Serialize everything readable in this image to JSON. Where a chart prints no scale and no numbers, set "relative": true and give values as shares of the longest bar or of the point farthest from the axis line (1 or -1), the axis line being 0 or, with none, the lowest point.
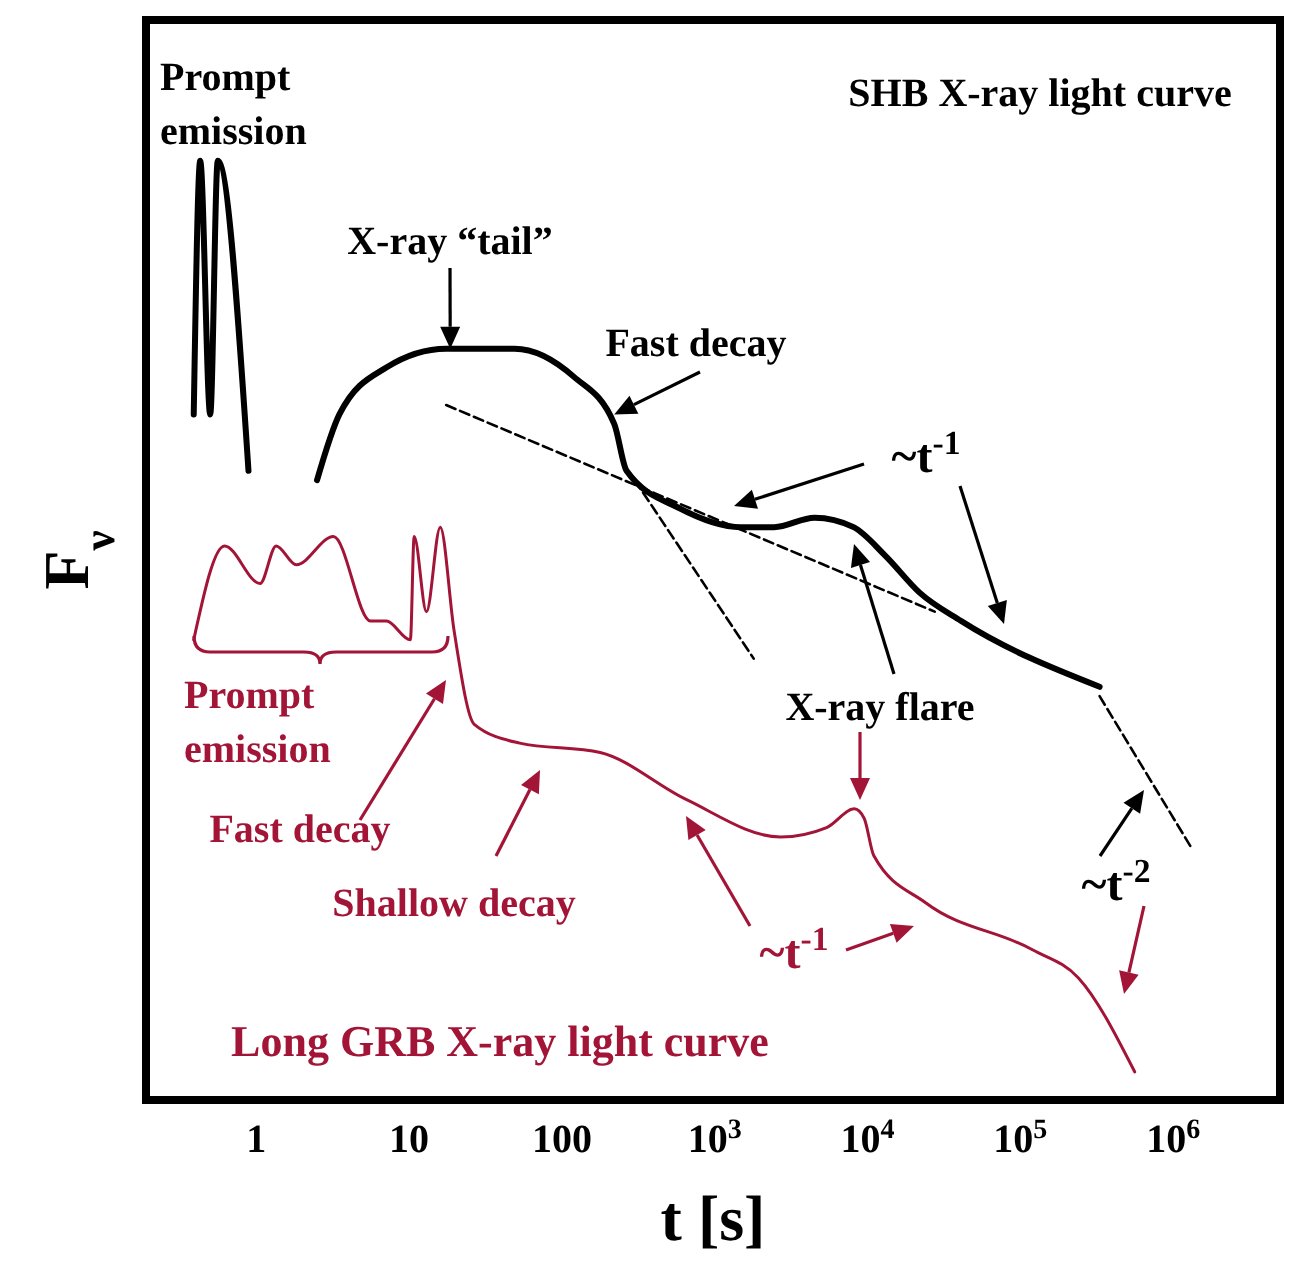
{
  "chart_data": {
    "type": "line",
    "relative": true,
    "xlabel": "t [s]",
    "ylabel": "F$_{ν}$",
    "log": "x",
    "xlim": [
      0.19,
      5000000
    ],
    "xticks": [
      1,
      10,
      100,
      {
        "value": 1000,
        "label": "10$^{3}$"
      },
      {
        "value": 10000,
        "label": "10$^{4}$"
      },
      {
        "value": 100000,
        "label": "10$^{5}$"
      },
      {
        "value": 1000000,
        "label": "10$^{6}$"
      }
    ],
    "series": [
      {
        "color": "#000000",
        "x": [
          0.39,
          0.43,
          0.5,
          0.56,
          0.89
        ],
        "values": [
          0.73,
          1,
          0.73,
          1,
          0.67
        ]
      },
      {
        "color": "#000000",
        "x": [
          2.5,
          3.5,
          7.1,
          17.5,
          49,
          120,
          220,
          265,
          590,
          1480,
          2450,
          4500,
          8100,
          13000,
          22000,
          41000,
          330000
        ],
        "values": [
          0.66,
          0.73,
          0.78,
          0.8,
          0.8,
          0.77,
          0.72,
          0.67,
          0.63,
          0.61,
          0.61,
          0.62,
          0.61,
          0.58,
          0.54,
          0.51,
          0.44
        ]
      },
      {
        "color": "#000000",
        "line_style": "dashed",
        "x": [
          17.5,
          27500
        ],
        "values": [
          0.74,
          0.52
        ]
      },
      {
        "color": "#000000",
        "line_style": "dashed",
        "x": [
          300,
          1800
        ],
        "values": [
          0.66,
          0.47
        ]
      },
      {
        "color": "#000000",
        "line_style": "dashed",
        "x": [
          330000,
          1300000
        ],
        "values": [
          0.43,
          0.27
        ]
      },
      {
        "color": "#a31537",
        "x": [
          0.39,
          0.62,
          1.06,
          1.35,
          1.83,
          3.2,
          5.6,
          7.1,
          10.2,
          10.8,
          13,
          16,
          19.7,
          26.7,
          53,
          178,
          650,
          2700,
          5400,
          8200,
          9500,
          11000,
          24000,
          120000,
          240000,
          560000
        ],
        "values": [
          0.49,
          0.59,
          0.55,
          0.59,
          0.57,
          0.6,
          0.51,
          0.51,
          0.49,
          0.6,
          0.52,
          0.61,
          0.5,
          0.4,
          0.38,
          0.37,
          0.32,
          0.28,
          0.29,
          0.31,
          0.3,
          0.26,
          0.21,
          0.16,
          0.13,
          0.03
        ]
      }
    ],
    "annotations": [
      "Prompt emission",
      "SHB X-ray light curve",
      {
        "text": "X-ray “tail”",
        "x": 18.6,
        "y": 0.8
      },
      {
        "text": "Fast decay",
        "x": 220,
        "y": 0.73
      },
      "~t$^{-1}$",
      "X-ray flare",
      "Prompt emission",
      "Fast decay",
      "Shallow decay",
      "~t$^{-1}$",
      "~t$^{-2}$",
      "Long GRB X-ray light curve"
    ]
  }
}
